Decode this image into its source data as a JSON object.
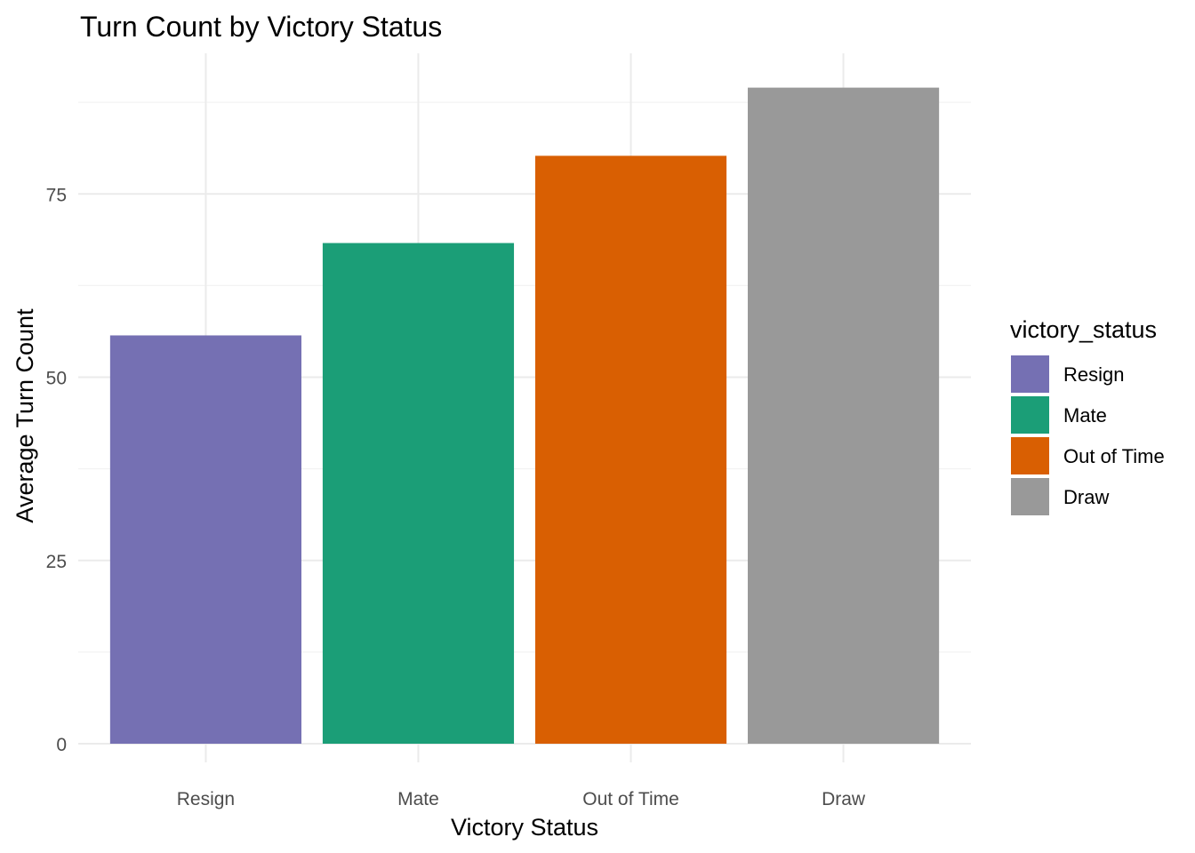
{
  "chart_data": {
    "type": "bar",
    "title": "Turn Count by Victory Status",
    "xlabel": "Victory Status",
    "ylabel": "Average Turn Count",
    "categories": [
      "Resign",
      "Mate",
      "Out of Time",
      "Draw"
    ],
    "values": [
      55.7,
      68.3,
      80.2,
      89.5
    ],
    "colors": [
      "#7570B3",
      "#1B9E77",
      "#D95F02",
      "#999999"
    ],
    "ylim": [
      0,
      94
    ],
    "yticks": [
      0,
      25,
      50,
      75
    ],
    "yminor": [
      12.5,
      37.5,
      62.5,
      87.5
    ],
    "grid": true,
    "legend": {
      "title": "victory_status",
      "position": "right",
      "entries": [
        "Resign",
        "Mate",
        "Out of Time",
        "Draw"
      ]
    }
  }
}
